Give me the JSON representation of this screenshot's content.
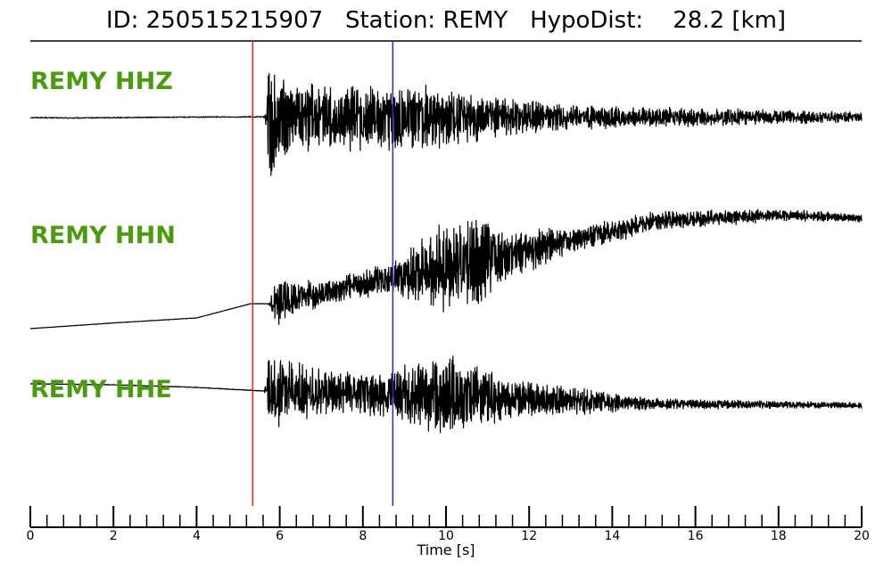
{
  "title": {
    "id_label": "ID:",
    "id_value": "250515215907",
    "station_label": "Station:",
    "station_value": "REMY",
    "dist_label": "HypoDist:",
    "dist_value": "28.2",
    "dist_unit": "[km]"
  },
  "chart_data": {
    "type": "line",
    "xlabel": "Time [s]",
    "xlim": [
      0,
      20
    ],
    "xticks": [
      0,
      2,
      4,
      6,
      8,
      10,
      12,
      14,
      16,
      18,
      20
    ],
    "minor_tick_step": 0.4,
    "pick_lines": [
      {
        "phase": "P",
        "time": 5.35,
        "color": "#e8211d"
      },
      {
        "phase": "S",
        "time": 8.72,
        "color": "#1f2fd0"
      }
    ],
    "trace_color": "#000000",
    "label_color": "#4c9a10",
    "series": [
      {
        "name": "REMY HHZ",
        "onset": 5.7,
        "envelope": [
          [
            0,
            0.02
          ],
          [
            5.6,
            0.02
          ],
          [
            5.75,
            1.0
          ],
          [
            6.2,
            0.55
          ],
          [
            8.5,
            0.5
          ],
          [
            9.3,
            0.55
          ],
          [
            11,
            0.35
          ],
          [
            13,
            0.2
          ],
          [
            20,
            0.08
          ]
        ],
        "baseline": [
          [
            0,
            0
          ],
          [
            1,
            -0.05
          ],
          [
            3,
            0.03
          ],
          [
            5.5,
            0.08
          ],
          [
            6,
            0.0
          ],
          [
            20,
            0.05
          ]
        ]
      },
      {
        "name": "REMY HHN",
        "onset": 5.8,
        "envelope": [
          [
            0,
            0.01
          ],
          [
            5.7,
            0.01
          ],
          [
            5.9,
            0.45
          ],
          [
            7,
            0.25
          ],
          [
            8.7,
            0.3
          ],
          [
            9.5,
            0.75
          ],
          [
            10.4,
            1.0
          ],
          [
            11.5,
            0.5
          ],
          [
            13,
            0.25
          ],
          [
            20,
            0.08
          ]
        ],
        "baseline": [
          [
            0,
            -0.3
          ],
          [
            2,
            -0.22
          ],
          [
            4,
            -0.15
          ],
          [
            5.3,
            0.05
          ],
          [
            5.8,
            0.05
          ],
          [
            9,
            0.45
          ],
          [
            12,
            0.8
          ],
          [
            15,
            1.2
          ],
          [
            18,
            1.3
          ],
          [
            20,
            1.25
          ]
        ]
      },
      {
        "name": "REMY HHE",
        "onset": 5.7,
        "envelope": [
          [
            0,
            0.02
          ],
          [
            5.6,
            0.02
          ],
          [
            5.75,
            0.85
          ],
          [
            6.3,
            0.65
          ],
          [
            7.5,
            0.45
          ],
          [
            8.5,
            0.5
          ],
          [
            10,
            0.9
          ],
          [
            11,
            0.6
          ],
          [
            12.5,
            0.35
          ],
          [
            15,
            0.12
          ],
          [
            20,
            0.07
          ]
        ],
        "baseline": [
          [
            0,
            0.95
          ],
          [
            2,
            0.9
          ],
          [
            4,
            0.75
          ],
          [
            5.6,
            0.55
          ],
          [
            7,
            0.5
          ],
          [
            10,
            0.25
          ],
          [
            14,
            -0.1
          ],
          [
            16,
            -0.2
          ],
          [
            20,
            -0.25
          ]
        ]
      }
    ]
  }
}
